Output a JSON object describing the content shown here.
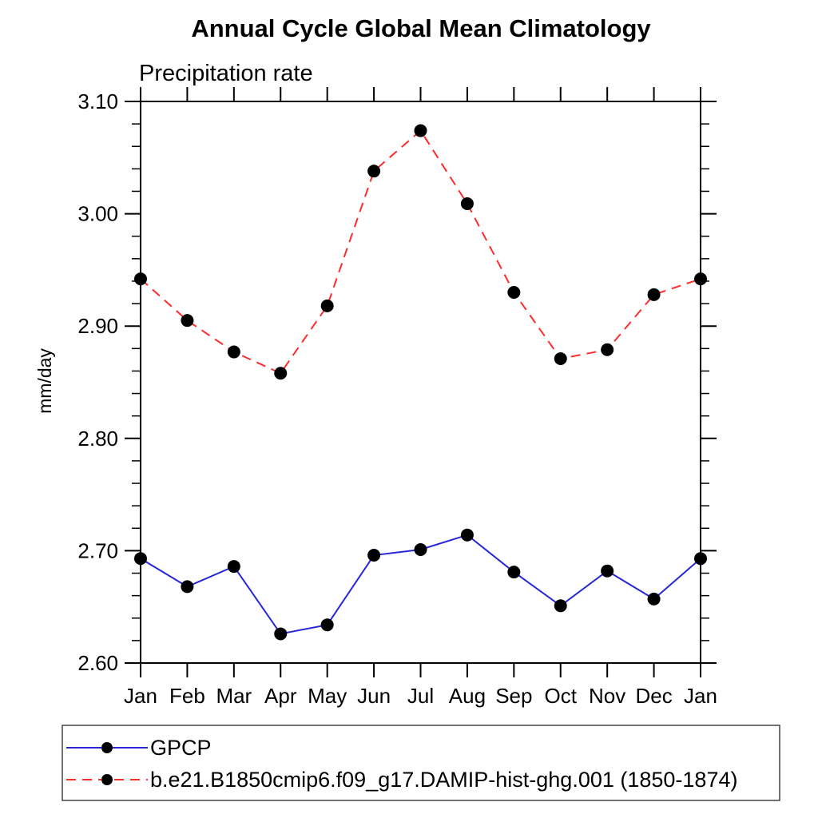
{
  "page": {
    "background": "#ffffff"
  },
  "chart_data": {
    "type": "line",
    "title": "Annual Cycle Global Mean Climatology",
    "subtitle": "Precipitation rate",
    "xlabel": "",
    "ylabel": "mm/day",
    "categories": [
      "Jan",
      "Feb",
      "Mar",
      "Apr",
      "May",
      "Jun",
      "Jul",
      "Aug",
      "Sep",
      "Oct",
      "Nov",
      "Dec",
      "Jan"
    ],
    "ylim": [
      2.6,
      3.1
    ],
    "y_major_step": 0.1,
    "y_minor_step": 0.02,
    "y_tick_decimals": 2,
    "grid": false,
    "legend_position": "bottom",
    "axis_color": "#000000",
    "marker_color": "#000000",
    "series": [
      {
        "name": "GPCP",
        "color": "#2626d8",
        "style": "solid",
        "marker": "circle",
        "values": [
          2.693,
          2.668,
          2.686,
          2.626,
          2.634,
          2.696,
          2.701,
          2.714,
          2.681,
          2.651,
          2.682,
          2.657,
          2.693
        ]
      },
      {
        "name": "b.e21.B1850cmip6.f09_g17.DAMIP-hist-ghg.001 (1850-1874)",
        "color": "#ff2b2b",
        "style": "dashed",
        "marker": "circle",
        "values": [
          2.942,
          2.905,
          2.877,
          2.858,
          2.918,
          3.038,
          3.074,
          3.009,
          2.93,
          2.871,
          2.879,
          2.928,
          2.942
        ]
      }
    ]
  }
}
